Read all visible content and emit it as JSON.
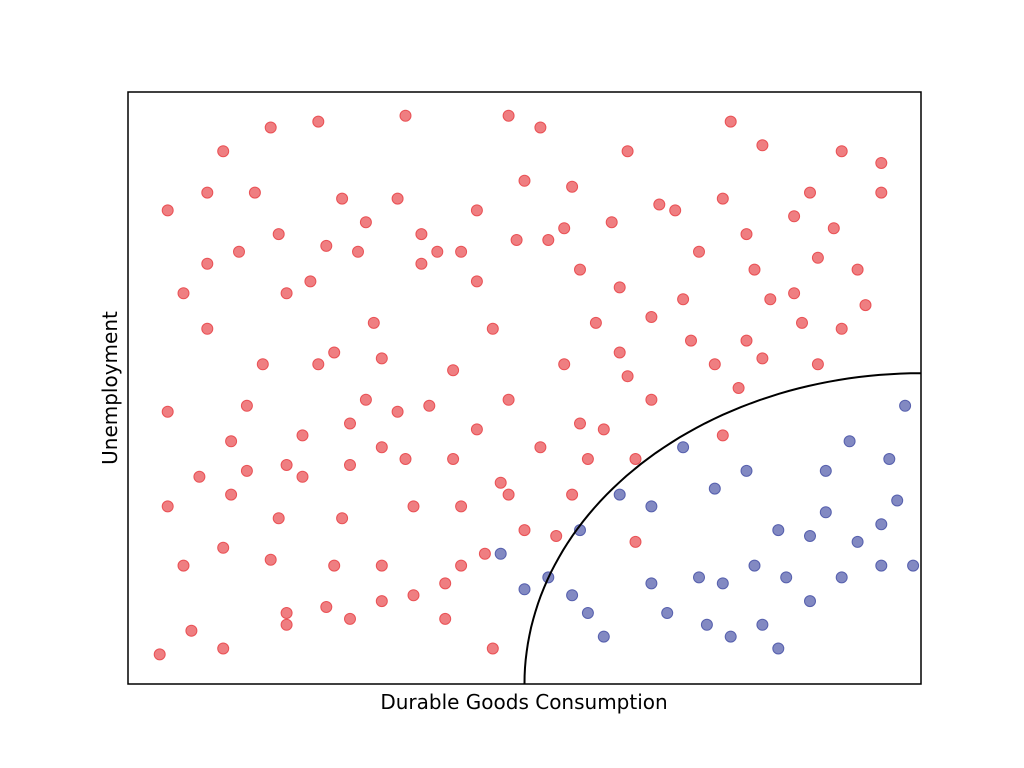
{
  "chart_data": {
    "type": "scatter",
    "xlabel": "Durable Goods Consumption",
    "ylabel": "Unemployment",
    "xlim": [
      0,
      1
    ],
    "ylim": [
      0,
      1
    ],
    "xticks": [],
    "yticks": [],
    "grid": false,
    "legend": "none",
    "colors": {
      "red": "#e8474b",
      "blue": "#4d57a8",
      "curve": "#000000"
    },
    "boundary": {
      "type": "quarter-circle",
      "center": [
        1,
        0
      ],
      "radius": 0.5
    },
    "series": [
      {
        "color_key": "red",
        "points": [
          [
            0.05,
            0.8
          ],
          [
            0.12,
            0.9
          ],
          [
            0.18,
            0.94
          ],
          [
            0.24,
            0.95
          ],
          [
            0.35,
            0.96
          ],
          [
            0.48,
            0.96
          ],
          [
            0.52,
            0.94
          ],
          [
            0.63,
            0.9
          ],
          [
            0.76,
            0.95
          ],
          [
            0.8,
            0.91
          ],
          [
            0.9,
            0.9
          ],
          [
            0.95,
            0.88
          ],
          [
            0.1,
            0.83
          ],
          [
            0.16,
            0.83
          ],
          [
            0.27,
            0.82
          ],
          [
            0.34,
            0.82
          ],
          [
            0.44,
            0.8
          ],
          [
            0.5,
            0.85
          ],
          [
            0.56,
            0.84
          ],
          [
            0.67,
            0.81
          ],
          [
            0.75,
            0.82
          ],
          [
            0.86,
            0.83
          ],
          [
            0.89,
            0.77
          ],
          [
            0.95,
            0.83
          ],
          [
            0.07,
            0.66
          ],
          [
            0.14,
            0.73
          ],
          [
            0.23,
            0.68
          ],
          [
            0.29,
            0.73
          ],
          [
            0.39,
            0.73
          ],
          [
            0.46,
            0.6
          ],
          [
            0.57,
            0.7
          ],
          [
            0.62,
            0.67
          ],
          [
            0.72,
            0.73
          ],
          [
            0.79,
            0.7
          ],
          [
            0.84,
            0.66
          ],
          [
            0.92,
            0.7
          ],
          [
            0.1,
            0.6
          ],
          [
            0.17,
            0.54
          ],
          [
            0.24,
            0.54
          ],
          [
            0.32,
            0.55
          ],
          [
            0.41,
            0.53
          ],
          [
            0.48,
            0.48
          ],
          [
            0.55,
            0.54
          ],
          [
            0.63,
            0.52
          ],
          [
            0.7,
            0.65
          ],
          [
            0.87,
            0.54
          ],
          [
            0.66,
            0.48
          ],
          [
            0.77,
            0.5
          ],
          [
            0.05,
            0.46
          ],
          [
            0.13,
            0.41
          ],
          [
            0.2,
            0.37
          ],
          [
            0.28,
            0.37
          ],
          [
            0.35,
            0.38
          ],
          [
            0.44,
            0.43
          ],
          [
            0.48,
            0.32
          ],
          [
            0.52,
            0.4
          ],
          [
            0.58,
            0.38
          ],
          [
            0.3,
            0.48
          ],
          [
            0.75,
            0.42
          ],
          [
            0.38,
            0.47
          ],
          [
            0.05,
            0.3
          ],
          [
            0.13,
            0.32
          ],
          [
            0.19,
            0.28
          ],
          [
            0.27,
            0.28
          ],
          [
            0.36,
            0.3
          ],
          [
            0.42,
            0.3
          ],
          [
            0.45,
            0.22
          ],
          [
            0.5,
            0.26
          ],
          [
            0.56,
            0.32
          ],
          [
            0.6,
            0.43
          ],
          [
            0.64,
            0.38
          ],
          [
            0.32,
            0.4
          ],
          [
            0.07,
            0.2
          ],
          [
            0.12,
            0.23
          ],
          [
            0.18,
            0.21
          ],
          [
            0.26,
            0.2
          ],
          [
            0.32,
            0.2
          ],
          [
            0.36,
            0.15
          ],
          [
            0.42,
            0.2
          ],
          [
            0.54,
            0.25
          ],
          [
            0.2,
            0.12
          ],
          [
            0.28,
            0.11
          ],
          [
            0.4,
            0.11
          ],
          [
            0.64,
            0.24
          ],
          [
            0.04,
            0.05
          ],
          [
            0.08,
            0.09
          ],
          [
            0.12,
            0.06
          ],
          [
            0.2,
            0.1
          ],
          [
            0.25,
            0.13
          ],
          [
            0.46,
            0.06
          ],
          [
            0.32,
            0.14
          ],
          [
            0.4,
            0.17
          ],
          [
            0.15,
            0.36
          ],
          [
            0.22,
            0.42
          ],
          [
            0.26,
            0.56
          ],
          [
            0.2,
            0.66
          ],
          [
            0.31,
            0.61
          ],
          [
            0.37,
            0.71
          ],
          [
            0.44,
            0.68
          ],
          [
            0.53,
            0.75
          ],
          [
            0.59,
            0.61
          ],
          [
            0.66,
            0.62
          ],
          [
            0.71,
            0.58
          ],
          [
            0.78,
            0.58
          ],
          [
            0.81,
            0.65
          ],
          [
            0.84,
            0.79
          ],
          [
            0.87,
            0.72
          ],
          [
            0.93,
            0.64
          ],
          [
            0.09,
            0.35
          ],
          [
            0.15,
            0.47
          ],
          [
            0.22,
            0.35
          ],
          [
            0.28,
            0.44
          ],
          [
            0.34,
            0.46
          ],
          [
            0.41,
            0.38
          ],
          [
            0.47,
            0.34
          ],
          [
            0.57,
            0.44
          ],
          [
            0.62,
            0.56
          ],
          [
            0.74,
            0.54
          ],
          [
            0.8,
            0.55
          ],
          [
            0.85,
            0.61
          ],
          [
            0.1,
            0.71
          ],
          [
            0.19,
            0.76
          ],
          [
            0.25,
            0.74
          ],
          [
            0.3,
            0.78
          ],
          [
            0.37,
            0.76
          ],
          [
            0.42,
            0.73
          ],
          [
            0.49,
            0.75
          ],
          [
            0.55,
            0.77
          ],
          [
            0.61,
            0.78
          ],
          [
            0.69,
            0.8
          ],
          [
            0.78,
            0.76
          ],
          [
            0.9,
            0.6
          ]
        ]
      },
      {
        "color_key": "blue",
        "points": [
          [
            0.47,
            0.22
          ],
          [
            0.5,
            0.16
          ],
          [
            0.53,
            0.18
          ],
          [
            0.56,
            0.15
          ],
          [
            0.58,
            0.12
          ],
          [
            0.6,
            0.08
          ],
          [
            0.66,
            0.17
          ],
          [
            0.68,
            0.12
          ],
          [
            0.73,
            0.1
          ],
          [
            0.76,
            0.08
          ],
          [
            0.8,
            0.1
          ],
          [
            0.82,
            0.06
          ],
          [
            0.57,
            0.26
          ],
          [
            0.62,
            0.32
          ],
          [
            0.66,
            0.3
          ],
          [
            0.7,
            0.4
          ],
          [
            0.74,
            0.33
          ],
          [
            0.78,
            0.36
          ],
          [
            0.82,
            0.26
          ],
          [
            0.86,
            0.25
          ],
          [
            0.88,
            0.29
          ],
          [
            0.92,
            0.24
          ],
          [
            0.95,
            0.27
          ],
          [
            0.97,
            0.31
          ],
          [
            0.72,
            0.18
          ],
          [
            0.75,
            0.17
          ],
          [
            0.79,
            0.2
          ],
          [
            0.83,
            0.18
          ],
          [
            0.86,
            0.14
          ],
          [
            0.9,
            0.18
          ],
          [
            0.95,
            0.2
          ],
          [
            0.99,
            0.2
          ],
          [
            0.91,
            0.41
          ],
          [
            0.96,
            0.38
          ],
          [
            0.98,
            0.47
          ],
          [
            0.88,
            0.36
          ]
        ]
      }
    ]
  }
}
